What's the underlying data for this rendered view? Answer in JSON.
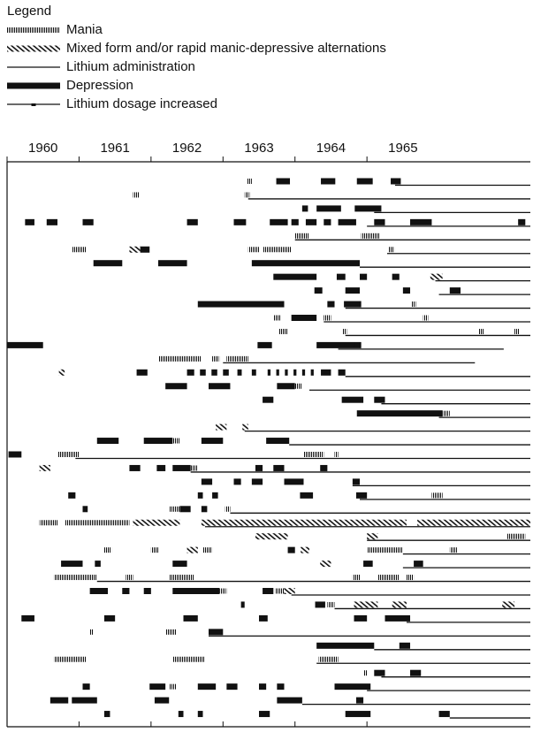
{
  "chart_data": {
    "type": "timeline",
    "legend": {
      "title": "Legend",
      "items": [
        {
          "label": "Mania",
          "style": "vertical-hatch"
        },
        {
          "label": "Mixed form and/or rapid manic-depressive alternations",
          "style": "diagonal-hatch"
        },
        {
          "label": "Lithium administration",
          "style": "line"
        },
        {
          "label": "Depression",
          "style": "bar"
        },
        {
          "label": "Lithium dosage increased",
          "style": "line-tick"
        }
      ]
    },
    "xlim": [
      1960,
      1967.27
    ],
    "xticks": [
      1960,
      1961,
      1962,
      1963,
      1964,
      1965
    ],
    "rows": [
      [
        [
          0,
          1963.33,
          1963.4
        ],
        [
          3,
          1963.74,
          1963.93
        ],
        [
          3,
          1964.36,
          1964.56
        ],
        [
          3,
          1964.86,
          1965.08
        ],
        [
          3,
          1965.33,
          1965.47
        ],
        [
          2,
          1965.39,
          1967.27
        ]
      ],
      [
        [
          0,
          1961.75,
          1961.83
        ],
        [
          0,
          1963.3,
          1963.37
        ],
        [
          2,
          1963.35,
          1967.27
        ]
      ],
      [
        [
          3,
          1964.1,
          1964.18
        ],
        [
          3,
          1964.3,
          1964.64
        ],
        [
          3,
          1964.83,
          1965.2
        ],
        [
          2,
          1965.1,
          1967.27
        ]
      ],
      [
        [
          3,
          1960.25,
          1960.38
        ],
        [
          3,
          1960.55,
          1960.7
        ],
        [
          3,
          1961.05,
          1961.2
        ],
        [
          3,
          1962.5,
          1962.65
        ],
        [
          3,
          1963.15,
          1963.32
        ],
        [
          3,
          1963.65,
          1963.9
        ],
        [
          3,
          1963.95,
          1964.05
        ],
        [
          3,
          1964.15,
          1964.3
        ],
        [
          3,
          1964.4,
          1964.5
        ],
        [
          3,
          1964.6,
          1964.85
        ],
        [
          3,
          1965.1,
          1965.25
        ],
        [
          3,
          1965.6,
          1965.9
        ],
        [
          3,
          1967.1,
          1967.2
        ],
        [
          2,
          1965.0,
          1967.27
        ]
      ],
      [
        [
          0,
          1964.0,
          1964.2
        ],
        [
          0,
          1964.92,
          1965.18
        ],
        [
          2,
          1964.0,
          1967.27
        ]
      ],
      [
        [
          0,
          1960.9,
          1961.1
        ],
        [
          1,
          1961.7,
          1961.85
        ],
        [
          3,
          1961.85,
          1961.98
        ],
        [
          0,
          1963.35,
          1963.5
        ],
        [
          0,
          1963.55,
          1963.95
        ],
        [
          0,
          1965.3,
          1965.38
        ],
        [
          2,
          1965.28,
          1967.27
        ]
      ],
      [
        [
          3,
          1961.2,
          1961.6
        ],
        [
          3,
          1962.1,
          1962.5
        ],
        [
          3,
          1963.4,
          1964.9
        ],
        [
          2,
          1964.9,
          1967.27
        ]
      ],
      [
        [
          3,
          1963.7,
          1964.3
        ],
        [
          3,
          1964.58,
          1964.7
        ],
        [
          3,
          1964.9,
          1965.0
        ],
        [
          3,
          1965.35,
          1965.45
        ],
        [
          1,
          1965.88,
          1966.05
        ],
        [
          2,
          1965.95,
          1967.27
        ]
      ],
      [
        [
          3,
          1964.27,
          1964.38
        ],
        [
          3,
          1964.7,
          1964.9
        ],
        [
          3,
          1965.5,
          1965.6
        ],
        [
          3,
          1966.15,
          1966.3
        ],
        [
          2,
          1966.0,
          1967.27
        ]
      ],
      [
        [
          3,
          1962.65,
          1963.85
        ],
        [
          3,
          1964.45,
          1964.55
        ],
        [
          3,
          1964.68,
          1964.92
        ],
        [
          0,
          1965.62,
          1965.68
        ],
        [
          2,
          1964.7,
          1967.27
        ]
      ],
      [
        [
          0,
          1963.7,
          1963.8
        ],
        [
          3,
          1963.95,
          1964.3
        ],
        [
          0,
          1964.4,
          1964.5
        ],
        [
          0,
          1965.78,
          1965.85
        ],
        [
          2,
          1964.4,
          1967.27
        ]
      ],
      [
        [
          0,
          1963.78,
          1963.9
        ],
        [
          0,
          1964.66,
          1964.72
        ],
        [
          0,
          1966.55,
          1966.63
        ],
        [
          0,
          1967.05,
          1967.12
        ],
        [
          2,
          1964.7,
          1967.27
        ]
      ],
      [
        [
          3,
          1960.0,
          1960.5
        ],
        [
          3,
          1963.48,
          1963.68
        ],
        [
          3,
          1964.3,
          1964.82
        ],
        [
          3,
          1964.82,
          1964.92
        ],
        [
          2,
          1964.6,
          1966.9
        ]
      ],
      [
        [
          0,
          1962.1,
          1962.7
        ],
        [
          0,
          1962.85,
          1962.95
        ],
        [
          0,
          1963.05,
          1963.35
        ],
        [
          2,
          1963.0,
          1966.5
        ]
      ],
      [
        [
          1,
          1960.72,
          1960.8
        ],
        [
          3,
          1961.8,
          1961.95
        ],
        [
          3,
          1962.5,
          1962.6
        ],
        [
          3,
          1962.68,
          1962.76
        ],
        [
          3,
          1962.84,
          1962.92
        ],
        [
          3,
          1963.0,
          1963.08
        ],
        [
          3,
          1963.2,
          1963.26
        ],
        [
          3,
          1963.4,
          1963.46
        ],
        [
          3,
          1963.62,
          1963.66
        ],
        [
          3,
          1963.74,
          1963.78
        ],
        [
          3,
          1963.86,
          1963.9
        ],
        [
          3,
          1963.98,
          1964.02
        ],
        [
          3,
          1964.1,
          1964.14
        ],
        [
          3,
          1964.22,
          1964.26
        ],
        [
          3,
          1964.36,
          1964.5
        ],
        [
          3,
          1964.6,
          1964.7
        ],
        [
          2,
          1964.7,
          1967.27
        ]
      ],
      [
        [
          3,
          1962.2,
          1962.5
        ],
        [
          3,
          1962.8,
          1963.1
        ],
        [
          3,
          1963.75,
          1964.0
        ],
        [
          0,
          1964.0,
          1964.1
        ],
        [
          2,
          1964.2,
          1967.27
        ]
      ],
      [
        [
          3,
          1963.55,
          1963.7
        ],
        [
          3,
          1964.65,
          1964.95
        ],
        [
          3,
          1965.1,
          1965.25
        ],
        [
          2,
          1965.2,
          1967.27
        ]
      ],
      [
        [
          3,
          1964.86,
          1966.05
        ],
        [
          0,
          1966.05,
          1966.15
        ],
        [
          2,
          1966.0,
          1967.27
        ]
      ],
      [
        [
          1,
          1962.9,
          1963.05
        ],
        [
          1,
          1963.27,
          1963.35
        ],
        [
          2,
          1963.3,
          1967.27
        ]
      ],
      [
        [
          3,
          1961.25,
          1961.55
        ],
        [
          3,
          1961.9,
          1962.3
        ],
        [
          0,
          1962.3,
          1962.4
        ],
        [
          3,
          1962.7,
          1963.0
        ],
        [
          3,
          1963.6,
          1963.92
        ],
        [
          2,
          1963.92,
          1967.27
        ]
      ],
      [
        [
          3,
          1960.02,
          1960.2
        ],
        [
          0,
          1960.7,
          1961.0
        ],
        [
          0,
          1964.12,
          1964.4
        ],
        [
          0,
          1964.55,
          1964.6
        ],
        [
          2,
          1960.95,
          1967.27
        ]
      ],
      [
        [
          1,
          1960.45,
          1960.6
        ],
        [
          3,
          1961.7,
          1961.85
        ],
        [
          3,
          1962.08,
          1962.2
        ],
        [
          3,
          1962.3,
          1962.55
        ],
        [
          0,
          1962.55,
          1962.65
        ],
        [
          3,
          1963.45,
          1963.55
        ],
        [
          3,
          1963.7,
          1963.85
        ],
        [
          3,
          1964.35,
          1964.45
        ],
        [
          2,
          1962.55,
          1967.27
        ]
      ],
      [
        [
          3,
          1962.7,
          1962.85
        ],
        [
          3,
          1963.15,
          1963.25
        ],
        [
          3,
          1963.4,
          1963.55
        ],
        [
          3,
          1963.85,
          1964.12
        ],
        [
          3,
          1964.8,
          1964.9
        ],
        [
          2,
          1964.8,
          1967.27
        ]
      ],
      [
        [
          3,
          1960.85,
          1960.95
        ],
        [
          3,
          1962.65,
          1962.72
        ],
        [
          3,
          1962.85,
          1962.93
        ],
        [
          3,
          1964.07,
          1964.25
        ],
        [
          3,
          1964.85,
          1965.0
        ],
        [
          0,
          1965.9,
          1966.05
        ],
        [
          2,
          1964.9,
          1967.27
        ]
      ],
      [
        [
          3,
          1961.05,
          1961.12
        ],
        [
          0,
          1962.25,
          1962.4
        ],
        [
          3,
          1962.4,
          1962.55
        ],
        [
          3,
          1962.7,
          1962.78
        ],
        [
          0,
          1963.03,
          1963.1
        ],
        [
          2,
          1963.1,
          1967.27
        ]
      ],
      [
        [
          0,
          1960.45,
          1960.7
        ],
        [
          0,
          1960.8,
          1961.7
        ],
        [
          1,
          1961.75,
          1962.4
        ],
        [
          1,
          1962.7,
          1965.55
        ],
        [
          1,
          1965.7,
          1967.27
        ],
        [
          2,
          1962.75,
          1967.27
        ]
      ],
      [
        [
          1,
          1963.45,
          1963.9
        ],
        [
          1,
          1965.0,
          1965.15
        ],
        [
          0,
          1966.95,
          1967.2
        ],
        [
          2,
          1965.0,
          1967.27
        ]
      ],
      [
        [
          0,
          1961.35,
          1961.45
        ],
        [
          0,
          1962.0,
          1962.1
        ],
        [
          1,
          1962.5,
          1962.65
        ],
        [
          0,
          1962.72,
          1962.85
        ],
        [
          3,
          1963.9,
          1964.0
        ],
        [
          1,
          1964.08,
          1964.2
        ],
        [
          0,
          1965.0,
          1965.5
        ],
        [
          0,
          1966.15,
          1966.25
        ],
        [
          2,
          1965.5,
          1967.27
        ]
      ],
      [
        [
          3,
          1960.75,
          1961.05
        ],
        [
          3,
          1961.22,
          1961.3
        ],
        [
          3,
          1962.3,
          1962.5
        ],
        [
          1,
          1964.35,
          1964.5
        ],
        [
          3,
          1964.95,
          1965.08
        ],
        [
          3,
          1965.65,
          1965.78
        ],
        [
          2,
          1965.5,
          1967.27
        ]
      ],
      [
        [
          0,
          1960.65,
          1961.25
        ],
        [
          0,
          1961.65,
          1961.75
        ],
        [
          0,
          1962.25,
          1962.6
        ],
        [
          0,
          1964.8,
          1964.9
        ],
        [
          0,
          1965.15,
          1965.45
        ],
        [
          0,
          1965.55,
          1965.65
        ],
        [
          2,
          1961.25,
          1967.27
        ]
      ],
      [
        [
          3,
          1961.15,
          1961.4
        ],
        [
          3,
          1961.6,
          1961.7
        ],
        [
          3,
          1961.9,
          1962.0
        ],
        [
          3,
          1962.3,
          1962.95
        ],
        [
          0,
          1962.95,
          1963.05
        ],
        [
          3,
          1963.55,
          1963.7
        ],
        [
          0,
          1963.72,
          1963.85
        ],
        [
          1,
          1963.85,
          1964.0
        ],
        [
          2,
          1963.95,
          1967.27
        ]
      ],
      [
        [
          3,
          1963.25,
          1963.3
        ],
        [
          3,
          1964.28,
          1964.42
        ],
        [
          0,
          1964.45,
          1964.55
        ],
        [
          1,
          1964.82,
          1965.15
        ],
        [
          1,
          1965.35,
          1965.55
        ],
        [
          1,
          1966.88,
          1967.05
        ],
        [
          2,
          1964.55,
          1967.27
        ]
      ],
      [
        [
          3,
          1960.2,
          1960.38
        ],
        [
          3,
          1961.35,
          1961.5
        ],
        [
          3,
          1962.45,
          1962.65
        ],
        [
          3,
          1963.5,
          1963.62
        ],
        [
          3,
          1964.82,
          1965.0
        ],
        [
          3,
          1965.25,
          1965.6
        ],
        [
          2,
          1965.55,
          1967.27
        ]
      ],
      [
        [
          0,
          1961.15,
          1961.2
        ],
        [
          0,
          1962.2,
          1962.35
        ],
        [
          3,
          1962.8,
          1963.0
        ],
        [
          2,
          1962.8,
          1967.27
        ]
      ],
      [
        [
          3,
          1964.3,
          1965.1
        ],
        [
          3,
          1965.45,
          1965.6
        ],
        [
          2,
          1965.1,
          1967.27
        ]
      ],
      [
        [
          0,
          1960.65,
          1961.1
        ],
        [
          0,
          1962.3,
          1962.75
        ],
        [
          0,
          1964.33,
          1964.6
        ],
        [
          2,
          1964.3,
          1967.27
        ]
      ],
      [
        [
          0,
          1964.95,
          1965.0
        ],
        [
          3,
          1965.1,
          1965.25
        ],
        [
          3,
          1965.6,
          1965.75
        ],
        [
          2,
          1965.2,
          1967.27
        ]
      ],
      [
        [
          3,
          1961.05,
          1961.15
        ],
        [
          3,
          1961.98,
          1962.2
        ],
        [
          0,
          1962.25,
          1962.35
        ],
        [
          3,
          1962.65,
          1962.9
        ],
        [
          3,
          1963.05,
          1963.2
        ],
        [
          3,
          1963.5,
          1963.6
        ],
        [
          3,
          1963.75,
          1963.85
        ],
        [
          3,
          1964.55,
          1965.05
        ],
        [
          2,
          1965.0,
          1967.27
        ]
      ],
      [
        [
          3,
          1960.6,
          1960.85
        ],
        [
          3,
          1960.9,
          1961.25
        ],
        [
          3,
          1962.05,
          1962.25
        ],
        [
          3,
          1963.75,
          1964.1
        ],
        [
          3,
          1964.85,
          1964.95
        ],
        [
          2,
          1964.1,
          1967.27
        ]
      ],
      [
        [
          3,
          1961.35,
          1961.43
        ],
        [
          3,
          1962.38,
          1962.45
        ],
        [
          3,
          1962.65,
          1962.72
        ],
        [
          3,
          1963.5,
          1963.65
        ],
        [
          3,
          1964.7,
          1965.05
        ],
        [
          3,
          1966.0,
          1966.15
        ],
        [
          2,
          1966.15,
          1967.27
        ]
      ]
    ]
  }
}
